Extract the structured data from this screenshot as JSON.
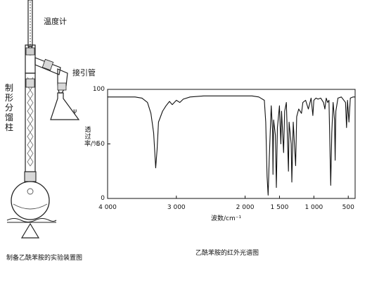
{
  "apparatus": {
    "thermometer_label": "温度计",
    "adapter_label": "接引管",
    "column_label": "制形分馏柱",
    "caption": "制备乙酰苯胺的实验装置图"
  },
  "chart_data": {
    "type": "line",
    "title": "乙酰苯胺的红外光谱图",
    "xlabel": "波数/cm⁻¹",
    "ylabel": "透过率/%",
    "x_reversed": true,
    "xlim": [
      4000,
      400
    ],
    "ylim": [
      0,
      100
    ],
    "x_ticks": [
      4000,
      3000,
      2000,
      1500,
      1000,
      500
    ],
    "x_tick_labels": [
      "4 000",
      "3 000",
      "2 000",
      "1 500",
      "1 000",
      "500"
    ],
    "y_ticks": [
      0,
      50,
      100
    ],
    "y_tick_labels": [
      "0",
      "50",
      "100"
    ],
    "grid": false,
    "series": [
      {
        "points": [
          [
            4000,
            93
          ],
          [
            3800,
            93
          ],
          [
            3600,
            93
          ],
          [
            3500,
            92
          ],
          [
            3420,
            88
          ],
          [
            3370,
            78
          ],
          [
            3330,
            60
          ],
          [
            3300,
            28
          ],
          [
            3280,
            45
          ],
          [
            3260,
            70
          ],
          [
            3200,
            80
          ],
          [
            3150,
            85
          ],
          [
            3100,
            89
          ],
          [
            3060,
            86
          ],
          [
            3000,
            90
          ],
          [
            2950,
            88
          ],
          [
            2900,
            91
          ],
          [
            2800,
            93
          ],
          [
            2600,
            94
          ],
          [
            2400,
            94
          ],
          [
            2200,
            94
          ],
          [
            2000,
            94
          ],
          [
            1900,
            94
          ],
          [
            1800,
            93
          ],
          [
            1720,
            90
          ],
          [
            1700,
            70
          ],
          [
            1680,
            20
          ],
          [
            1665,
            3
          ],
          [
            1650,
            35
          ],
          [
            1620,
            85
          ],
          [
            1600,
            60
          ],
          [
            1595,
            22
          ],
          [
            1585,
            72
          ],
          [
            1560,
            58
          ],
          [
            1545,
            10
          ],
          [
            1530,
            65
          ],
          [
            1500,
            85
          ],
          [
            1490,
            66
          ],
          [
            1480,
            50
          ],
          [
            1470,
            80
          ],
          [
            1440,
            42
          ],
          [
            1425,
            80
          ],
          [
            1400,
            88
          ],
          [
            1370,
            25
          ],
          [
            1360,
            70
          ],
          [
            1330,
            50
          ],
          [
            1320,
            15
          ],
          [
            1300,
            70
          ],
          [
            1265,
            30
          ],
          [
            1250,
            75
          ],
          [
            1220,
            82
          ],
          [
            1180,
            78
          ],
          [
            1160,
            88
          ],
          [
            1120,
            90
          ],
          [
            1080,
            82
          ],
          [
            1040,
            92
          ],
          [
            1015,
            76
          ],
          [
            1000,
            90
          ],
          [
            970,
            92
          ],
          [
            940,
            91
          ],
          [
            900,
            92
          ],
          [
            860,
            88
          ],
          [
            840,
            82
          ],
          [
            820,
            92
          ],
          [
            800,
            88
          ],
          [
            780,
            90
          ],
          [
            755,
            12
          ],
          [
            740,
            60
          ],
          [
            720,
            88
          ],
          [
            700,
            72
          ],
          [
            690,
            35
          ],
          [
            680,
            80
          ],
          [
            650,
            92
          ],
          [
            600,
            93
          ],
          [
            540,
            88
          ],
          [
            525,
            65
          ],
          [
            510,
            90
          ],
          [
            490,
            70
          ],
          [
            470,
            92
          ],
          [
            430,
            93
          ],
          [
            400,
            93
          ]
        ]
      }
    ]
  },
  "colors": {
    "line": "#111111",
    "background": "#ffffff"
  }
}
